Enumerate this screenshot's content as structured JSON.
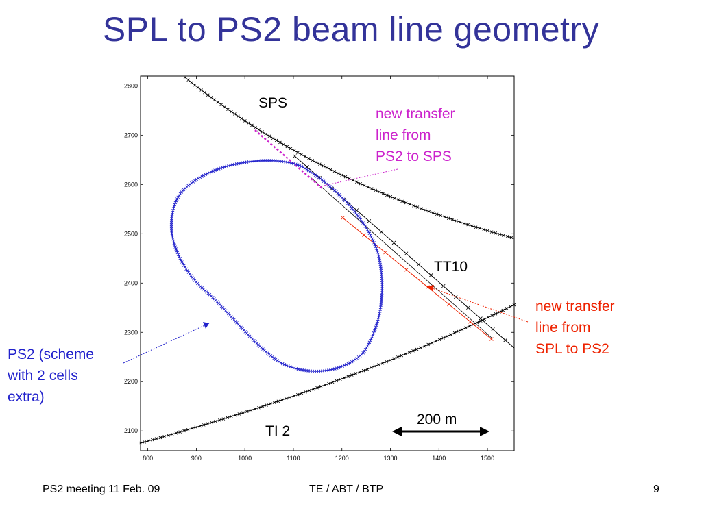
{
  "slide": {
    "title": "SPL to PS2 beam line geometry",
    "colors": {
      "title": "#333399",
      "ps2_ring": "#2222cc",
      "sps_to_ps2": "#cc22cc",
      "spl_to_ps2": "#ee2200",
      "existing_lines": "#000000"
    }
  },
  "plot": {
    "x_ticks": [
      "800",
      "900",
      "1000",
      "1100",
      "1200",
      "1300",
      "1400",
      "1500"
    ],
    "y_ticks": [
      "2100",
      "2200",
      "2300",
      "2400",
      "2500",
      "2600",
      "2700",
      "2800"
    ],
    "xlim": [
      785,
      1555
    ],
    "ylim": [
      2060,
      2820
    ]
  },
  "labels": {
    "sps": "SPS",
    "tt10": "TT10",
    "ti2": "TI 2",
    "scale_bar": "200 m",
    "new_line_ps2_sps": [
      "new transfer",
      "line from",
      "PS2 to SPS"
    ],
    "new_line_spl_ps2": [
      "new transfer",
      "line from",
      "SPL to PS2"
    ],
    "ps2_scheme": [
      "PS2 (scheme",
      "with 2 cells",
      "extra)"
    ]
  },
  "footer": {
    "left": "PS2 meeting 11 Feb. 09",
    "center": "TE / ABT / BTP",
    "page": "9"
  }
}
